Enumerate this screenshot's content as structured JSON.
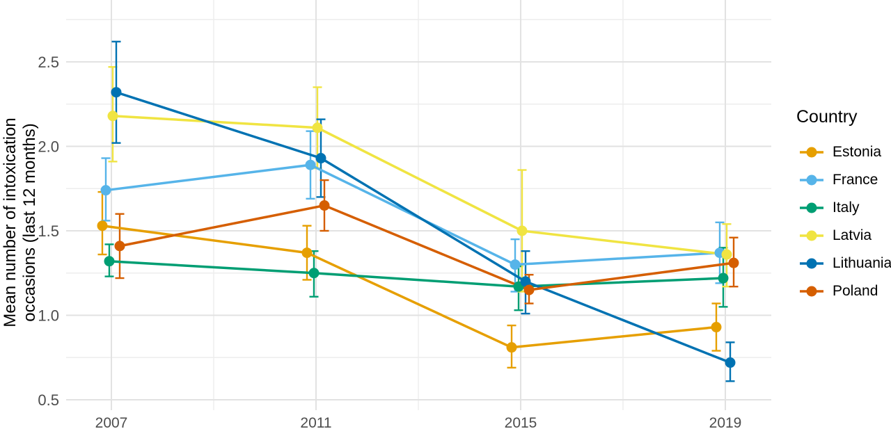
{
  "chart_data": {
    "type": "line",
    "title": "",
    "xlabel": "",
    "ylabel": "Mean number of intoxication occasions (last 12 months)",
    "ylabel_lines": [
      "Mean number of intoxication",
      "occasions (last 12 months)"
    ],
    "legend_title": "Country",
    "legend_position": "right",
    "grid": true,
    "x": [
      2007,
      2011,
      2015,
      2019
    ],
    "x_tick_labels": [
      "2007",
      "2011",
      "2015",
      "2019"
    ],
    "x_minor": [
      2009,
      2013,
      2017
    ],
    "y_ticks": [
      0.5,
      1.0,
      1.5,
      2.0,
      2.5
    ],
    "y_tick_labels": [
      "0.5",
      "1.0",
      "1.5",
      "2.0",
      "2.5"
    ],
    "y_minor": [
      0.75,
      1.25,
      1.75,
      2.25,
      2.75
    ],
    "ylim": [
      0.45,
      2.87
    ],
    "colors": {
      "grid_major": "#E2E2E2",
      "grid_minor": "#EDEDED",
      "axis_text": "#4d4d4d"
    },
    "series": [
      {
        "name": "Estonia",
        "color": "#E69F00",
        "values": [
          1.53,
          1.37,
          0.81,
          0.93
        ],
        "ci_low": [
          1.36,
          1.21,
          0.69,
          0.79
        ],
        "ci_high": [
          1.73,
          1.53,
          0.94,
          1.07
        ]
      },
      {
        "name": "France",
        "color": "#56B4E9",
        "values": [
          1.74,
          1.89,
          1.3,
          1.37
        ],
        "ci_low": [
          1.56,
          1.69,
          1.14,
          1.19
        ],
        "ci_high": [
          1.93,
          2.09,
          1.45,
          1.55
        ]
      },
      {
        "name": "Italy",
        "color": "#009E73",
        "values": [
          1.32,
          1.25,
          1.17,
          1.22
        ],
        "ci_low": [
          1.23,
          1.11,
          1.03,
          1.05
        ],
        "ci_high": [
          1.42,
          1.38,
          1.29,
          1.4
        ]
      },
      {
        "name": "Latvia",
        "color": "#F0E442",
        "values": [
          2.18,
          2.11,
          1.5,
          1.36
        ],
        "ci_low": [
          1.91,
          1.87,
          1.14,
          1.17
        ],
        "ci_high": [
          2.47,
          2.35,
          1.86,
          1.54
        ]
      },
      {
        "name": "Lithuania",
        "color": "#0072B2",
        "values": [
          2.32,
          1.93,
          1.2,
          0.72
        ],
        "ci_low": [
          2.02,
          1.7,
          1.01,
          0.61
        ],
        "ci_high": [
          2.62,
          2.16,
          1.38,
          0.84
        ]
      },
      {
        "name": "Poland",
        "color": "#D55E00",
        "values": [
          1.41,
          1.65,
          1.15,
          1.31
        ],
        "ci_low": [
          1.22,
          1.5,
          1.07,
          1.17
        ],
        "ci_high": [
          1.6,
          1.8,
          1.24,
          1.46
        ]
      }
    ]
  }
}
